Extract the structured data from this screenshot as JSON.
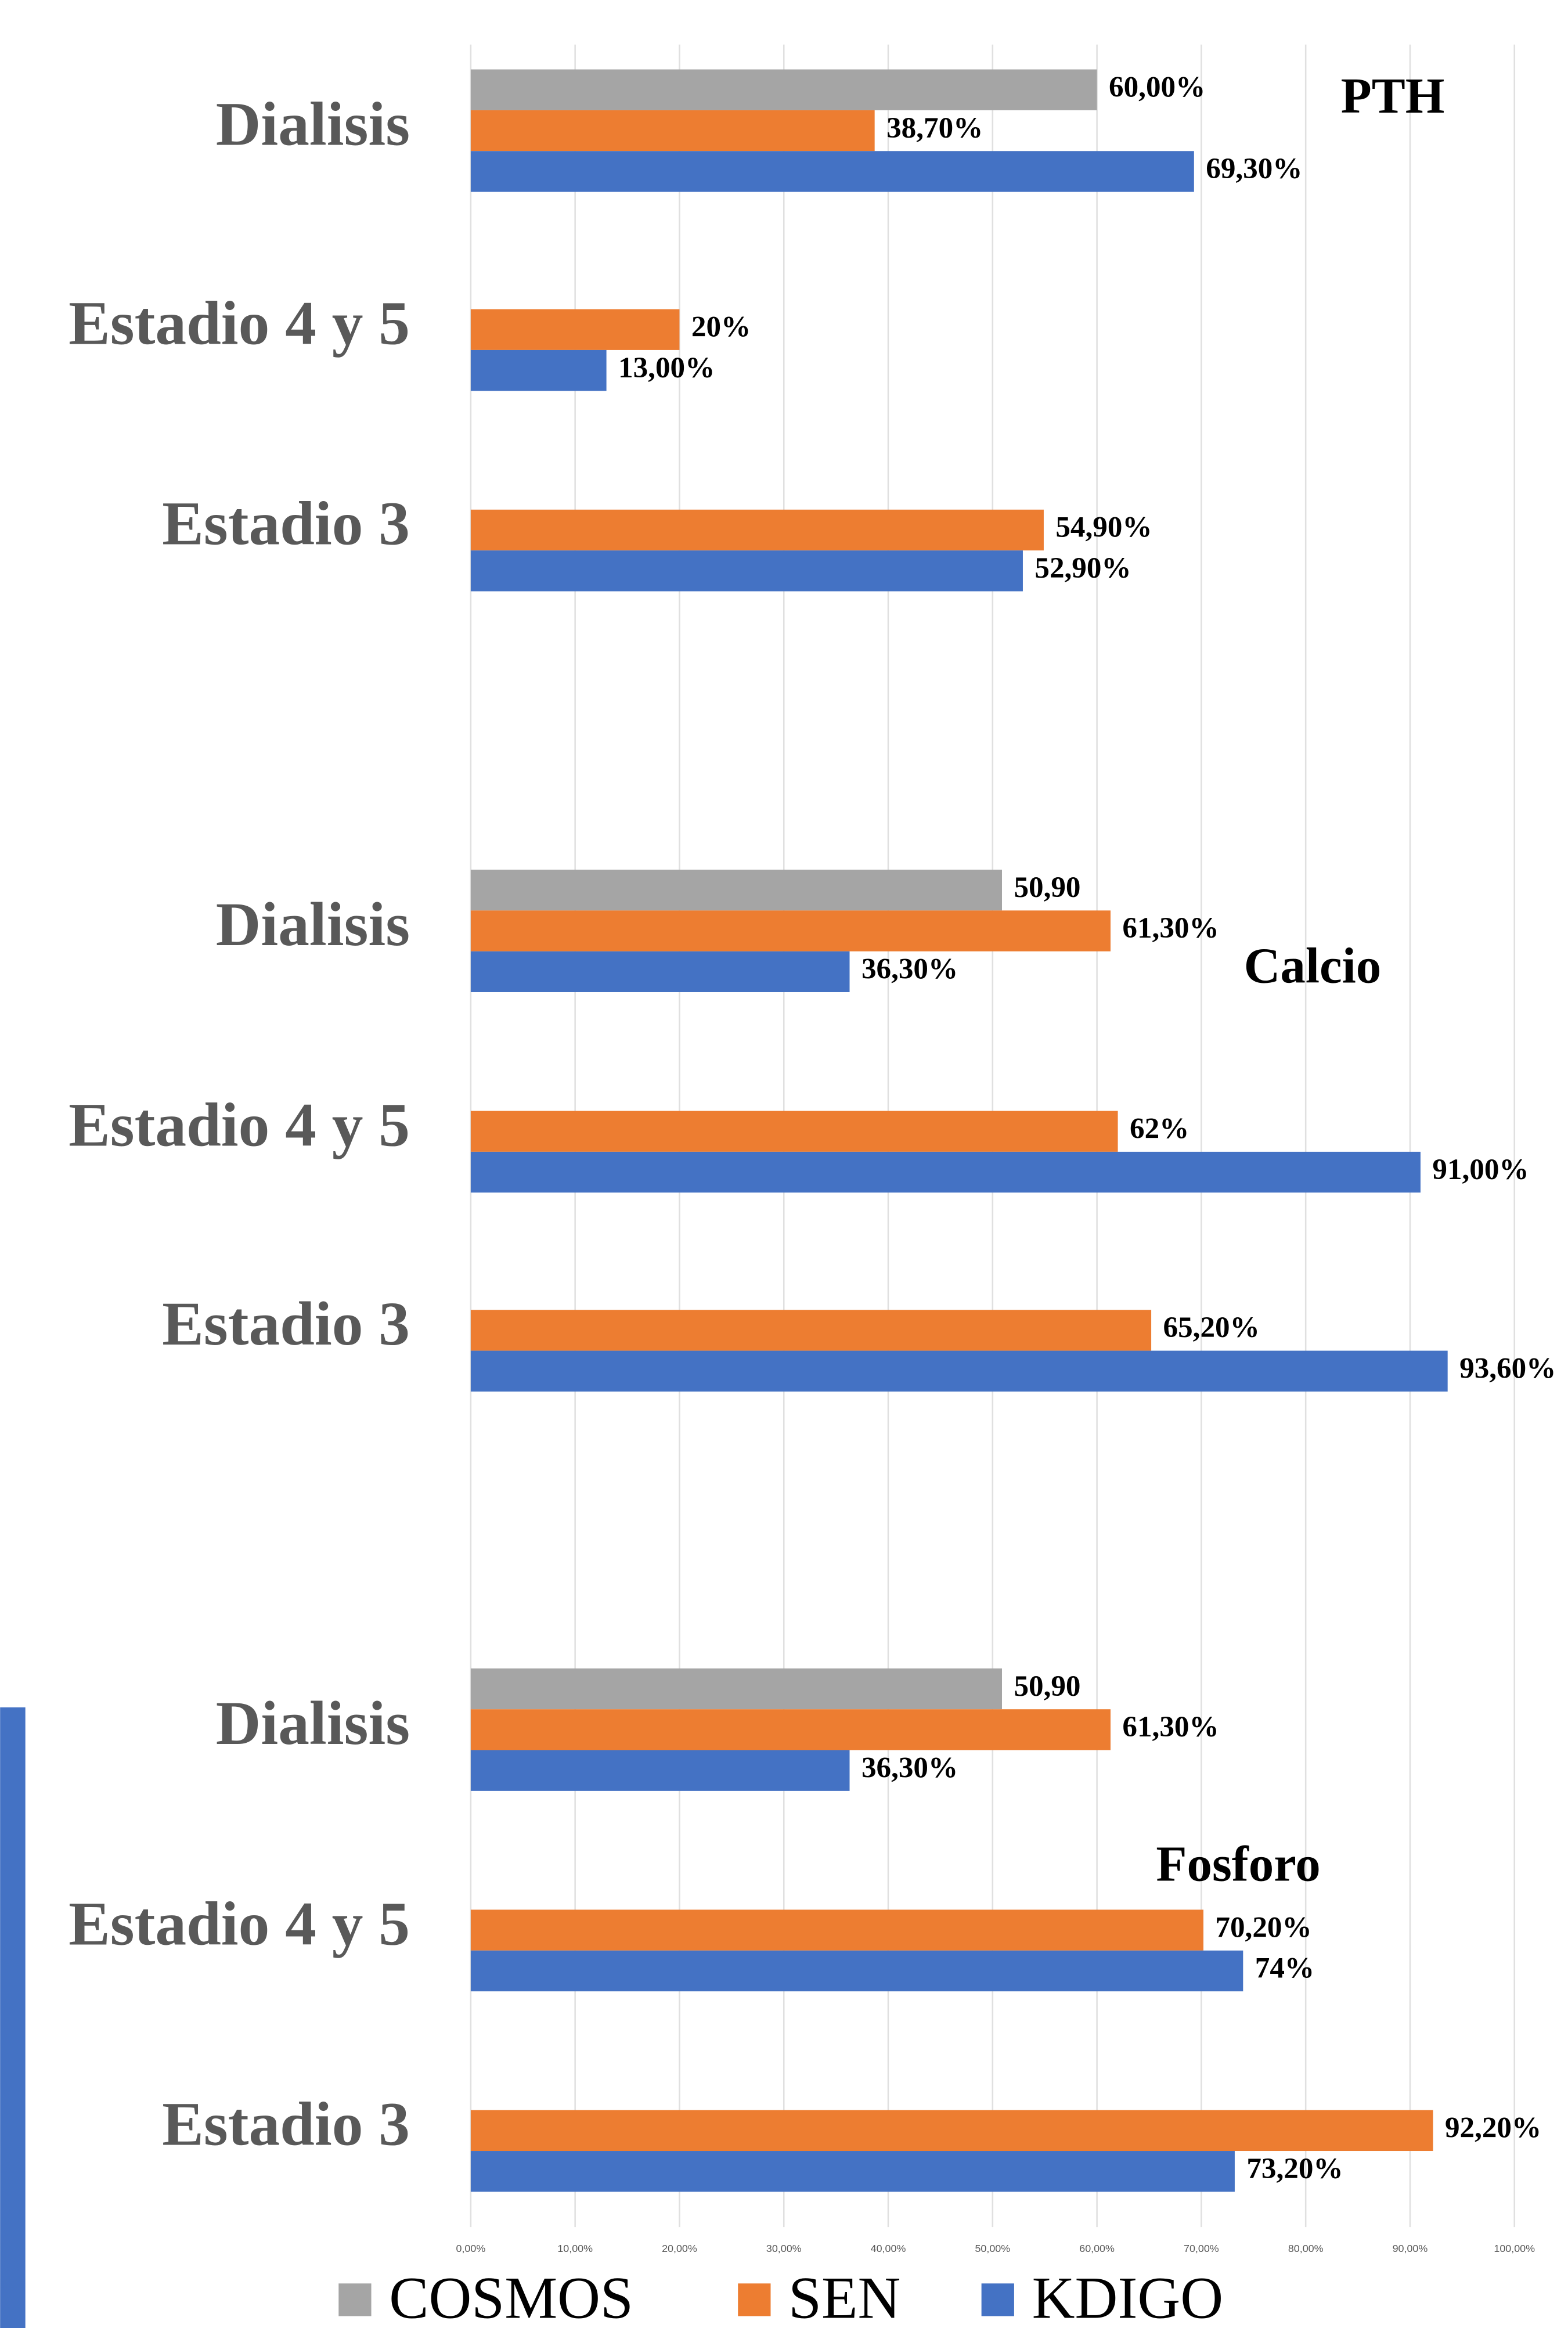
{
  "chart_data": {
    "type": "barh",
    "categories": [
      "Dialisis",
      "Estadio 4 y 5",
      "Estadio 3",
      "Dialisis",
      "Estadio 4 y 5",
      "Estadio 3",
      "Dialisis",
      "Estadio 4 y 5",
      "Estadio 3"
    ],
    "series": [
      {
        "name": "COSMOS",
        "color": "#a5a5a5",
        "values": [
          60,
          null,
          null,
          50.9,
          null,
          null,
          50.9,
          null,
          null
        ],
        "value_labels": [
          "60,00%",
          null,
          null,
          "50,90",
          null,
          null,
          "50,90",
          null,
          null
        ]
      },
      {
        "name": "SEN",
        "color": "#ed7d31",
        "values": [
          38.7,
          20,
          54.9,
          61.3,
          62,
          65.2,
          61.3,
          70.2,
          92.2
        ],
        "value_labels": [
          "38,70%",
          "20%",
          "54,90%",
          "61,30%",
          "62%",
          "65,20%",
          "61,30%",
          "70,20%",
          "92,20%"
        ]
      },
      {
        "name": "KDIGO",
        "color": "#4472c4",
        "values": [
          69.3,
          13,
          52.9,
          36.3,
          91,
          93.6,
          36.3,
          74,
          73.2
        ],
        "value_labels": [
          "69,30%",
          "13,00%",
          "52,90%",
          "36,30%",
          "91,00%",
          "93,60%",
          "36,30%",
          "74%",
          "73,20%"
        ]
      }
    ],
    "annotations": [
      "PTH",
      "Calcio",
      "Fosforo"
    ],
    "xlim": [
      0,
      100
    ],
    "xticks": [
      {
        "value": 0,
        "label": "0,00%"
      },
      {
        "value": 10,
        "label": "10,00%"
      },
      {
        "value": 20,
        "label": "20,00%"
      },
      {
        "value": 30,
        "label": "30,00%"
      },
      {
        "value": 40,
        "label": "40,00%"
      },
      {
        "value": 50,
        "label": "50,00%"
      },
      {
        "value": 60,
        "label": "60,00%"
      },
      {
        "value": 70,
        "label": "70,00%"
      },
      {
        "value": 80,
        "label": "80,00%"
      },
      {
        "value": 90,
        "label": "90,00%"
      },
      {
        "value": 100,
        "label": "100,00%"
      }
    ],
    "grid": true,
    "legend": "bottom"
  }
}
